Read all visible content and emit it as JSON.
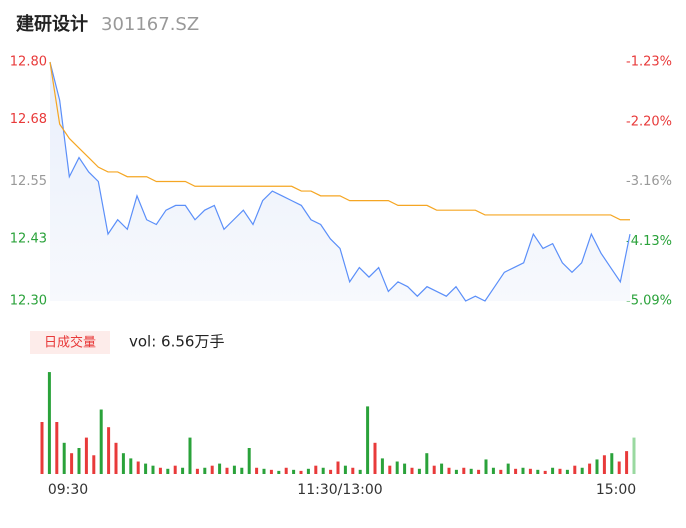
{
  "header": {
    "name": "建研设计",
    "code": "301167.SZ"
  },
  "chart_data": [
    {
      "type": "line",
      "xlim": [
        0,
        240
      ],
      "xticks": [
        {
          "value": 0,
          "label": "09:30"
        },
        {
          "value": 120,
          "label": "11:30/13:00"
        },
        {
          "value": 240,
          "label": "15:00"
        }
      ],
      "ylim": [
        12.3,
        12.8
      ],
      "yticks": [
        {
          "value": 12.8,
          "label": "12.80"
        },
        {
          "value": 12.68,
          "label": "12.68"
        },
        {
          "value": 12.55,
          "label": "12.55"
        },
        {
          "value": 12.43,
          "label": "12.43"
        },
        {
          "value": 12.3,
          "label": "12.30"
        }
      ],
      "ytick_colors": [
        "#e83a3a",
        "#e83a3a",
        "#999999",
        "#2aa23a",
        "#2aa23a"
      ],
      "y2lim": [
        -5.09,
        -1.23
      ],
      "y2ticks": [
        {
          "value": -1.23,
          "label": "-1.23%"
        },
        {
          "value": -2.2,
          "label": "-2.20%"
        },
        {
          "value": -3.16,
          "label": "-3.16%"
        },
        {
          "value": -4.13,
          "label": "-4.13%"
        },
        {
          "value": -5.09,
          "label": "-5.09%"
        }
      ],
      "x": [
        0,
        4,
        8,
        12,
        16,
        20,
        24,
        28,
        32,
        36,
        40,
        44,
        48,
        52,
        56,
        60,
        64,
        68,
        72,
        76,
        80,
        84,
        88,
        92,
        96,
        100,
        104,
        108,
        112,
        116,
        120,
        124,
        128,
        132,
        136,
        140,
        144,
        148,
        152,
        156,
        160,
        164,
        168,
        172,
        176,
        180,
        184,
        188,
        192,
        196,
        200,
        204,
        208,
        212,
        216,
        220,
        224,
        228,
        232,
        236,
        240
      ],
      "series": [
        {
          "color": "#5b8ff9",
          "values": [
            12.8,
            12.72,
            12.56,
            12.6,
            12.57,
            12.55,
            12.44,
            12.47,
            12.45,
            12.52,
            12.47,
            12.46,
            12.49,
            12.5,
            12.5,
            12.47,
            12.49,
            12.5,
            12.45,
            12.47,
            12.49,
            12.46,
            12.51,
            12.53,
            12.52,
            12.51,
            12.5,
            12.47,
            12.46,
            12.43,
            12.41,
            12.34,
            12.37,
            12.35,
            12.37,
            12.32,
            12.34,
            12.33,
            12.31,
            12.33,
            12.32,
            12.31,
            12.33,
            12.3,
            12.31,
            12.3,
            12.33,
            12.36,
            12.37,
            12.38,
            12.44,
            12.41,
            12.42,
            12.38,
            12.36,
            12.38,
            12.44,
            12.4,
            12.37,
            12.34,
            12.44
          ]
        },
        {
          "color": "#f5a623",
          "values": [
            12.8,
            12.67,
            12.64,
            12.62,
            12.6,
            12.58,
            12.57,
            12.57,
            12.56,
            12.56,
            12.56,
            12.55,
            12.55,
            12.55,
            12.55,
            12.54,
            12.54,
            12.54,
            12.54,
            12.54,
            12.54,
            12.54,
            12.54,
            12.54,
            12.54,
            12.54,
            12.53,
            12.53,
            12.52,
            12.52,
            12.52,
            12.51,
            12.51,
            12.51,
            12.51,
            12.51,
            12.5,
            12.5,
            12.5,
            12.5,
            12.49,
            12.49,
            12.49,
            12.49,
            12.49,
            12.48,
            12.48,
            12.48,
            12.48,
            12.48,
            12.48,
            12.48,
            12.48,
            12.48,
            12.48,
            12.48,
            12.48,
            12.48,
            12.48,
            12.47,
            12.47
          ]
        }
      ]
    },
    {
      "type": "bar",
      "legend": "日成交量",
      "vol_label": "vol: 6.56万手",
      "xlim": [
        0,
        240
      ],
      "ylim": [
        0,
        100
      ],
      "x": [
        0,
        3,
        6,
        9,
        12,
        15,
        18,
        21,
        24,
        27,
        30,
        33,
        36,
        39,
        42,
        45,
        48,
        51,
        54,
        57,
        60,
        63,
        66,
        69,
        72,
        75,
        78,
        81,
        84,
        87,
        90,
        93,
        96,
        99,
        102,
        105,
        108,
        111,
        114,
        117,
        120,
        123,
        126,
        129,
        132,
        135,
        138,
        141,
        144,
        147,
        150,
        153,
        156,
        159,
        162,
        165,
        168,
        171,
        174,
        177,
        180,
        183,
        186,
        189,
        192,
        195,
        198,
        201,
        204,
        207,
        210,
        213,
        216,
        219,
        222,
        225,
        228,
        231,
        234,
        237,
        240
      ],
      "values": [
        50,
        98,
        50,
        30,
        20,
        25,
        35,
        18,
        62,
        45,
        30,
        20,
        15,
        12,
        10,
        8,
        6,
        5,
        8,
        6,
        35,
        5,
        6,
        8,
        10,
        6,
        8,
        6,
        25,
        6,
        5,
        4,
        3,
        6,
        4,
        3,
        5,
        8,
        6,
        4,
        12,
        8,
        6,
        4,
        65,
        30,
        15,
        8,
        12,
        10,
        6,
        5,
        20,
        8,
        10,
        6,
        4,
        6,
        5,
        4,
        14,
        6,
        4,
        10,
        5,
        6,
        5,
        4,
        3,
        6,
        5,
        4,
        8,
        6,
        10,
        14,
        18,
        20,
        12,
        22,
        35
      ],
      "colors": [
        "#e83a3a",
        "#2aa23a",
        "#e83a3a",
        "#2aa23a",
        "#e83a3a",
        "#2aa23a",
        "#e83a3a",
        "#e83a3a",
        "#2aa23a",
        "#e83a3a",
        "#e83a3a",
        "#2aa23a",
        "#2aa23a",
        "#e83a3a",
        "#2aa23a",
        "#2aa23a",
        "#e83a3a",
        "#2aa23a",
        "#e83a3a",
        "#2aa23a",
        "#2aa23a",
        "#e83a3a",
        "#2aa23a",
        "#e83a3a",
        "#2aa23a",
        "#e83a3a",
        "#2aa23a",
        "#2aa23a",
        "#2aa23a",
        "#e83a3a",
        "#2aa23a",
        "#e83a3a",
        "#2aa23a",
        "#e83a3a",
        "#2aa23a",
        "#e83a3a",
        "#2aa23a",
        "#e83a3a",
        "#2aa23a",
        "#e83a3a",
        "#e83a3a",
        "#2aa23a",
        "#e83a3a",
        "#2aa23a",
        "#2aa23a",
        "#e83a3a",
        "#2aa23a",
        "#e83a3a",
        "#2aa23a",
        "#2aa23a",
        "#e83a3a",
        "#2aa23a",
        "#2aa23a",
        "#e83a3a",
        "#2aa23a",
        "#e83a3a",
        "#2aa23a",
        "#e83a3a",
        "#2aa23a",
        "#e83a3a",
        "#2aa23a",
        "#2aa23a",
        "#e83a3a",
        "#2aa23a",
        "#e83a3a",
        "#2aa23a",
        "#e83a3a",
        "#2aa23a",
        "#e83a3a",
        "#2aa23a",
        "#e83a3a",
        "#2aa23a",
        "#e83a3a",
        "#2aa23a",
        "#e83a3a",
        "#2aa23a",
        "#e83a3a",
        "#2aa23a",
        "#e83a3a",
        "#e83a3a",
        "#9ad9a0"
      ]
    }
  ]
}
